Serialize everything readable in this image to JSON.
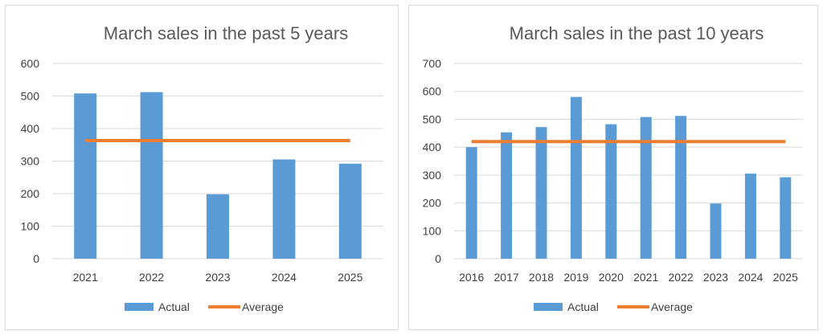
{
  "colors": {
    "bar": "#5b9bd5",
    "average": "#ed7d31",
    "grid": "#d9d9d9"
  },
  "chart_data": [
    {
      "type": "bar",
      "title": "March sales in the past 5 years",
      "categories": [
        "2021",
        "2022",
        "2023",
        "2024",
        "2025"
      ],
      "series": [
        {
          "name": "Actual",
          "type": "bar",
          "values": [
            508,
            512,
            198,
            305,
            292
          ]
        },
        {
          "name": "Average",
          "type": "line",
          "values": [
            363,
            363,
            363,
            363,
            363
          ]
        }
      ],
      "ylim": [
        0,
        600
      ],
      "yticks": [
        0,
        100,
        200,
        300,
        400,
        500,
        600
      ],
      "grid": true,
      "legend": "bottom"
    },
    {
      "type": "bar",
      "title": "March sales in the past 10 years",
      "categories": [
        "2016",
        "2017",
        "2018",
        "2019",
        "2020",
        "2021",
        "2022",
        "2023",
        "2024",
        "2025"
      ],
      "series": [
        {
          "name": "Actual",
          "type": "bar",
          "values": [
            400,
            453,
            472,
            580,
            482,
            508,
            512,
            198,
            305,
            292
          ]
        },
        {
          "name": "Average",
          "type": "line",
          "values": [
            420,
            420,
            420,
            420,
            420,
            420,
            420,
            420,
            420,
            420
          ]
        }
      ],
      "ylim": [
        0,
        700
      ],
      "yticks": [
        0,
        100,
        200,
        300,
        400,
        500,
        600,
        700
      ],
      "grid": true,
      "legend": "bottom"
    }
  ]
}
